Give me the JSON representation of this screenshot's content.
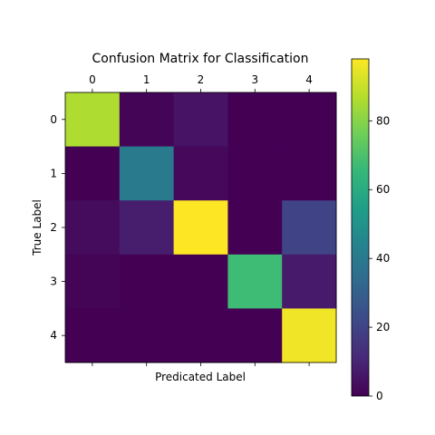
{
  "chart_data": {
    "type": "heatmap",
    "title": "Confusion Matrix for Classification",
    "xlabel": "Predicated Label",
    "ylabel": "True Label",
    "x_categories": [
      "0",
      "1",
      "2",
      "3",
      "4"
    ],
    "y_categories": [
      "0",
      "1",
      "2",
      "3",
      "4"
    ],
    "values": [
      [
        86,
        1,
        5,
        0,
        0
      ],
      [
        0,
        40,
        2,
        0,
        0
      ],
      [
        3,
        8,
        98,
        0,
        20
      ],
      [
        1,
        0,
        0,
        67,
        7
      ],
      [
        0,
        0,
        0,
        0,
        96
      ]
    ],
    "colorbar": {
      "min": 0,
      "max": 98,
      "ticks": [
        0,
        20,
        40,
        60,
        80
      ],
      "tick_labels": [
        "0",
        "20",
        "40",
        "60",
        "80"
      ],
      "colormap": "viridis"
    },
    "colors": {
      "viridis": [
        "#440154",
        "#482878",
        "#3e4989",
        "#31688e",
        "#26828e",
        "#1f9e89",
        "#35b779",
        "#6ece58",
        "#b5de2b",
        "#fde725"
      ]
    },
    "grid": false
  }
}
